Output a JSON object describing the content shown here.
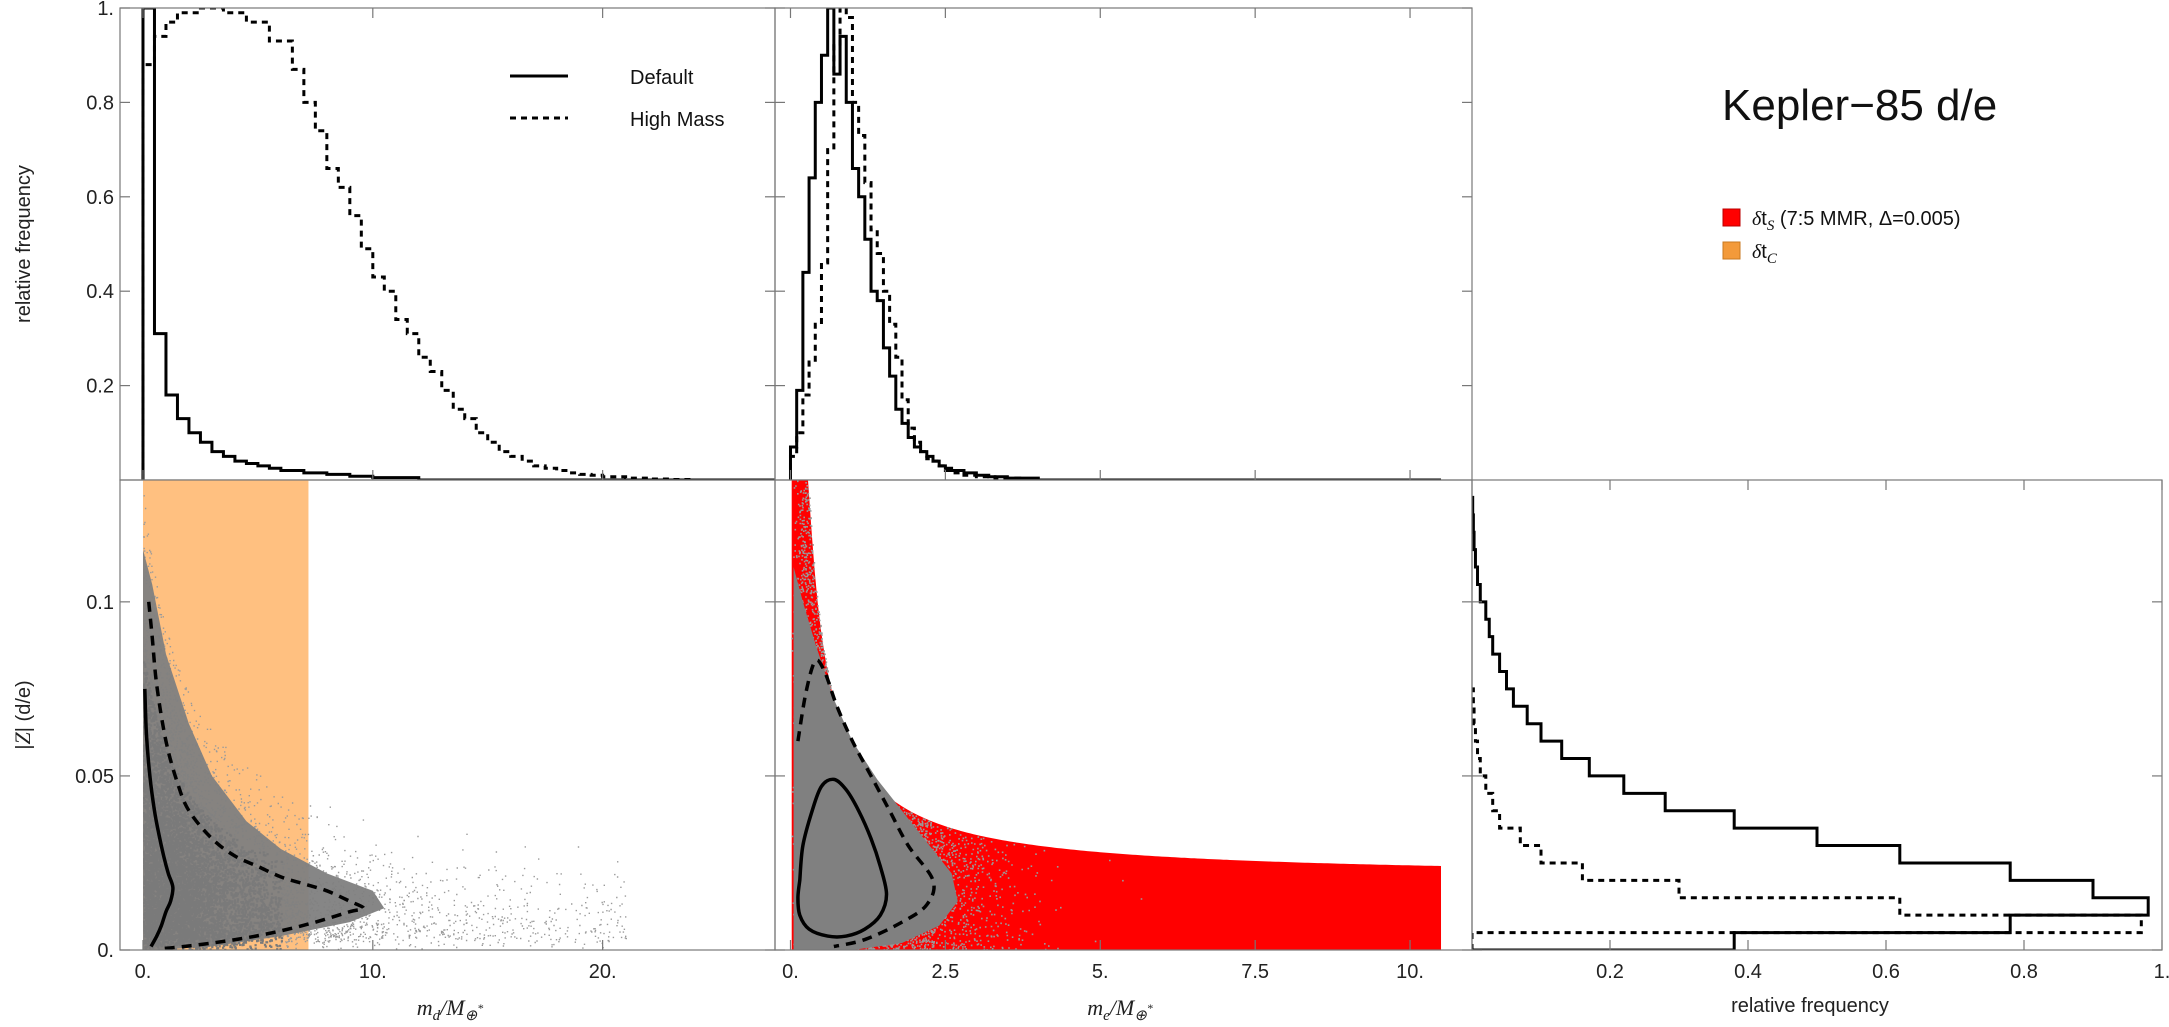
{
  "title": "Kepler−85 d/e",
  "colors": {
    "sigma_s": "#ff0000",
    "sigma_c": "#ffc080",
    "scatter": "#808080",
    "line": "#000000"
  },
  "legends": {
    "style": [
      {
        "label": "Default",
        "style": "solid"
      },
      {
        "label": "High Mass",
        "style": "dashed"
      }
    ],
    "regions": [
      {
        "label": "δt_S (7:5 MMR, Δ=0.005)",
        "color": "#ff0000"
      },
      {
        "label": "δt_C",
        "color": "#ffc080"
      }
    ]
  },
  "chart_data": [
    {
      "id": "hist-md",
      "type": "line",
      "ylabel": "relative frequency",
      "xlim": [
        -1.0,
        27.5
      ],
      "ylim": [
        0,
        1.0
      ],
      "xticks": [],
      "yticks": [
        "0.2",
        "0.4",
        "0.6",
        "0.8",
        "1."
      ],
      "series": [
        {
          "name": "Default",
          "style": "solid",
          "bin_edges": [
            0,
            0.5,
            1.0,
            1.5,
            2.0,
            2.5,
            3.0,
            3.5,
            4.0,
            4.5,
            5.0,
            5.5,
            6.0,
            7.0,
            8.0,
            9.0,
            10.0,
            12.0,
            27.5
          ],
          "values": [
            1.0,
            0.31,
            0.18,
            0.13,
            0.1,
            0.08,
            0.06,
            0.05,
            0.04,
            0.035,
            0.03,
            0.025,
            0.02,
            0.015,
            0.012,
            0.008,
            0.005,
            0.0
          ]
        },
        {
          "name": "High Mass",
          "style": "dashed",
          "bin_edges": [
            0,
            0.5,
            1.0,
            1.5,
            2.5,
            3.5,
            4.5,
            5.5,
            6.5,
            7.0,
            7.5,
            8.0,
            8.5,
            9.0,
            9.5,
            10.0,
            10.5,
            11.0,
            11.5,
            12.0,
            12.5,
            13.0,
            13.5,
            14.0,
            14.5,
            15.0,
            15.5,
            16.0,
            16.5,
            17.0,
            17.5,
            18.0,
            18.5,
            19.0,
            19.5,
            20.0,
            21.0,
            22.0,
            23.0,
            24.0
          ],
          "values": [
            0.88,
            0.94,
            0.97,
            0.99,
            1.0,
            0.99,
            0.97,
            0.93,
            0.87,
            0.8,
            0.74,
            0.66,
            0.62,
            0.56,
            0.49,
            0.43,
            0.4,
            0.34,
            0.31,
            0.26,
            0.23,
            0.19,
            0.15,
            0.13,
            0.1,
            0.08,
            0.06,
            0.05,
            0.04,
            0.03,
            0.025,
            0.02,
            0.015,
            0.012,
            0.01,
            0.007,
            0.004,
            0.002,
            0.001
          ]
        }
      ]
    },
    {
      "id": "hist-me",
      "type": "line",
      "xlim": [
        -0.25,
        11.0
      ],
      "ylim": [
        0,
        1.0
      ],
      "xticks": [],
      "yticks": [],
      "series": [
        {
          "name": "Default",
          "style": "solid",
          "bin_edges": [
            0,
            0.1,
            0.2,
            0.3,
            0.4,
            0.5,
            0.6,
            0.7,
            0.8,
            0.9,
            1.0,
            1.1,
            1.2,
            1.3,
            1.4,
            1.5,
            1.6,
            1.7,
            1.8,
            1.9,
            2.0,
            2.1,
            2.2,
            2.3,
            2.4,
            2.5,
            2.6,
            2.8,
            3.0,
            3.2,
            3.5,
            4.0,
            10.5
          ],
          "values": [
            0.07,
            0.19,
            0.44,
            0.64,
            0.8,
            0.9,
            1.0,
            0.86,
            0.94,
            0.8,
            0.66,
            0.6,
            0.51,
            0.4,
            0.38,
            0.28,
            0.22,
            0.15,
            0.12,
            0.09,
            0.07,
            0.06,
            0.05,
            0.04,
            0.03,
            0.025,
            0.02,
            0.015,
            0.01,
            0.007,
            0.004,
            0.0
          ]
        },
        {
          "name": "High Mass",
          "style": "dashed",
          "bin_edges": [
            0,
            0.1,
            0.2,
            0.3,
            0.4,
            0.5,
            0.6,
            0.7,
            0.8,
            0.9,
            1.0,
            1.1,
            1.2,
            1.3,
            1.4,
            1.5,
            1.6,
            1.7,
            1.8,
            1.9,
            2.0,
            2.1,
            2.2,
            2.3,
            2.4,
            2.5,
            2.6,
            2.8,
            3.0,
            3.3,
            3.7,
            10.5
          ],
          "values": [
            0.05,
            0.1,
            0.18,
            0.25,
            0.33,
            0.46,
            0.7,
            0.92,
            1.0,
            0.98,
            0.8,
            0.73,
            0.63,
            0.53,
            0.48,
            0.4,
            0.33,
            0.26,
            0.17,
            0.11,
            0.08,
            0.06,
            0.045,
            0.04,
            0.03,
            0.02,
            0.015,
            0.01,
            0.007,
            0.004,
            0.0
          ]
        }
      ]
    },
    {
      "id": "scatter-md",
      "type": "scatter",
      "xlabel": "m_d/M_⊕",
      "ylabel": "|Z| (d/e)",
      "xlim": [
        -1.0,
        27.5
      ],
      "ylim": [
        0,
        0.135
      ],
      "xticks": [
        "0.",
        "10.",
        "20."
      ],
      "yticks": [
        "0.",
        "0.05",
        "0.1"
      ],
      "region_sigma_c": {
        "x": [
          0,
          7.2
        ],
        "y": [
          0,
          0.135
        ]
      },
      "contours": [
        {
          "name": "Default",
          "style": "solid",
          "points": [
            [
              0.08,
              0.075
            ],
            [
              0.15,
              0.062
            ],
            [
              0.3,
              0.05
            ],
            [
              0.5,
              0.04
            ],
            [
              0.7,
              0.033
            ],
            [
              0.9,
              0.027
            ],
            [
              1.1,
              0.022
            ],
            [
              1.3,
              0.018
            ],
            [
              1.2,
              0.014
            ],
            [
              1.0,
              0.011
            ],
            [
              0.8,
              0.007
            ],
            [
              0.6,
              0.004
            ],
            [
              0.35,
              0.001
            ]
          ]
        },
        {
          "name": "High Mass",
          "style": "dashed",
          "points": [
            [
              0.25,
              0.1
            ],
            [
              0.4,
              0.09
            ],
            [
              0.6,
              0.076
            ],
            [
              1.0,
              0.06
            ],
            [
              1.5,
              0.048
            ],
            [
              2.0,
              0.04
            ],
            [
              3.0,
              0.032
            ],
            [
              4.0,
              0.027
            ],
            [
              5.0,
              0.024
            ],
            [
              6.0,
              0.021
            ],
            [
              7.0,
              0.019
            ],
            [
              8.0,
              0.017
            ],
            [
              9.0,
              0.014
            ],
            [
              9.6,
              0.012
            ],
            [
              9.0,
              0.011
            ],
            [
              7.5,
              0.008
            ],
            [
              6.0,
              0.0055
            ],
            [
              4.5,
              0.0035
            ],
            [
              3.0,
              0.002
            ],
            [
              1.5,
              0.0008
            ],
            [
              0.8,
              0.0004
            ]
          ]
        }
      ]
    },
    {
      "id": "scatter-me",
      "type": "scatter",
      "xlabel": "m_e/M_⊕",
      "xlim": [
        -0.25,
        11.0
      ],
      "ylim": [
        0,
        0.135
      ],
      "xticks": [
        "0.",
        "2.5",
        "5.",
        "7.5",
        "10."
      ],
      "yticks": [],
      "region_sigma_s": {
        "x": [
          0.02,
          10.5
        ],
        "upper_boundary_k": 0.0275,
        "exponent": 0.33,
        "y_cap": 0.135
      },
      "contours": [
        {
          "name": "Default",
          "style": "solid",
          "points": [
            [
              0.15,
              0.02
            ],
            [
              0.2,
              0.03
            ],
            [
              0.35,
              0.04
            ],
            [
              0.5,
              0.047
            ],
            [
              0.7,
              0.049
            ],
            [
              0.9,
              0.046
            ],
            [
              1.1,
              0.04
            ],
            [
              1.3,
              0.032
            ],
            [
              1.45,
              0.024
            ],
            [
              1.55,
              0.016
            ],
            [
              1.45,
              0.01
            ],
            [
              1.2,
              0.006
            ],
            [
              0.9,
              0.004
            ],
            [
              0.6,
              0.004
            ],
            [
              0.3,
              0.006
            ],
            [
              0.15,
              0.01
            ],
            [
              0.12,
              0.015
            ],
            [
              0.15,
              0.02
            ]
          ]
        },
        {
          "name": "High Mass",
          "style": "dashed",
          "points": [
            [
              0.12,
              0.06
            ],
            [
              0.25,
              0.074
            ],
            [
              0.4,
              0.083
            ],
            [
              0.55,
              0.08
            ],
            [
              0.75,
              0.07
            ],
            [
              1.0,
              0.06
            ],
            [
              1.3,
              0.05
            ],
            [
              1.6,
              0.04
            ],
            [
              1.9,
              0.03
            ],
            [
              2.3,
              0.02
            ],
            [
              2.2,
              0.013
            ],
            [
              1.8,
              0.008
            ],
            [
              1.2,
              0.003
            ],
            [
              0.7,
              0.001
            ]
          ]
        }
      ]
    },
    {
      "id": "hist-z",
      "type": "line",
      "xlabel": "relative frequency",
      "xlim": [
        0,
        1.0
      ],
      "ylim": [
        0,
        0.135
      ],
      "xticks": [
        "0.2",
        "0.4",
        "0.6",
        "0.8",
        "1."
      ],
      "yticks": [],
      "orientation": "horizontal",
      "series": [
        {
          "name": "Default",
          "style": "solid",
          "bin_edges": [
            0,
            0.005,
            0.01,
            0.015,
            0.02,
            0.025,
            0.03,
            0.035,
            0.04,
            0.045,
            0.05,
            0.055,
            0.06,
            0.065,
            0.07,
            0.075,
            0.08,
            0.085,
            0.09,
            0.095,
            0.1,
            0.105,
            0.11,
            0.115,
            0.12,
            0.125,
            0.13
          ],
          "values": [
            0.38,
            0.78,
            0.98,
            0.9,
            0.78,
            0.62,
            0.5,
            0.38,
            0.28,
            0.22,
            0.17,
            0.13,
            0.1,
            0.08,
            0.06,
            0.05,
            0.04,
            0.03,
            0.025,
            0.02,
            0.012,
            0.008,
            0.005,
            0.003,
            0.002,
            0.001
          ]
        },
        {
          "name": "High Mass",
          "style": "dashed",
          "bin_edges": [
            0,
            0.005,
            0.01,
            0.015,
            0.02,
            0.025,
            0.03,
            0.035,
            0.04,
            0.045,
            0.05,
            0.055,
            0.06,
            0.065,
            0.07,
            0.075
          ],
          "values": [
            0.0,
            0.97,
            0.62,
            0.3,
            0.16,
            0.1,
            0.07,
            0.04,
            0.03,
            0.02,
            0.012,
            0.008,
            0.005,
            0.003,
            0.002
          ]
        }
      ]
    }
  ]
}
